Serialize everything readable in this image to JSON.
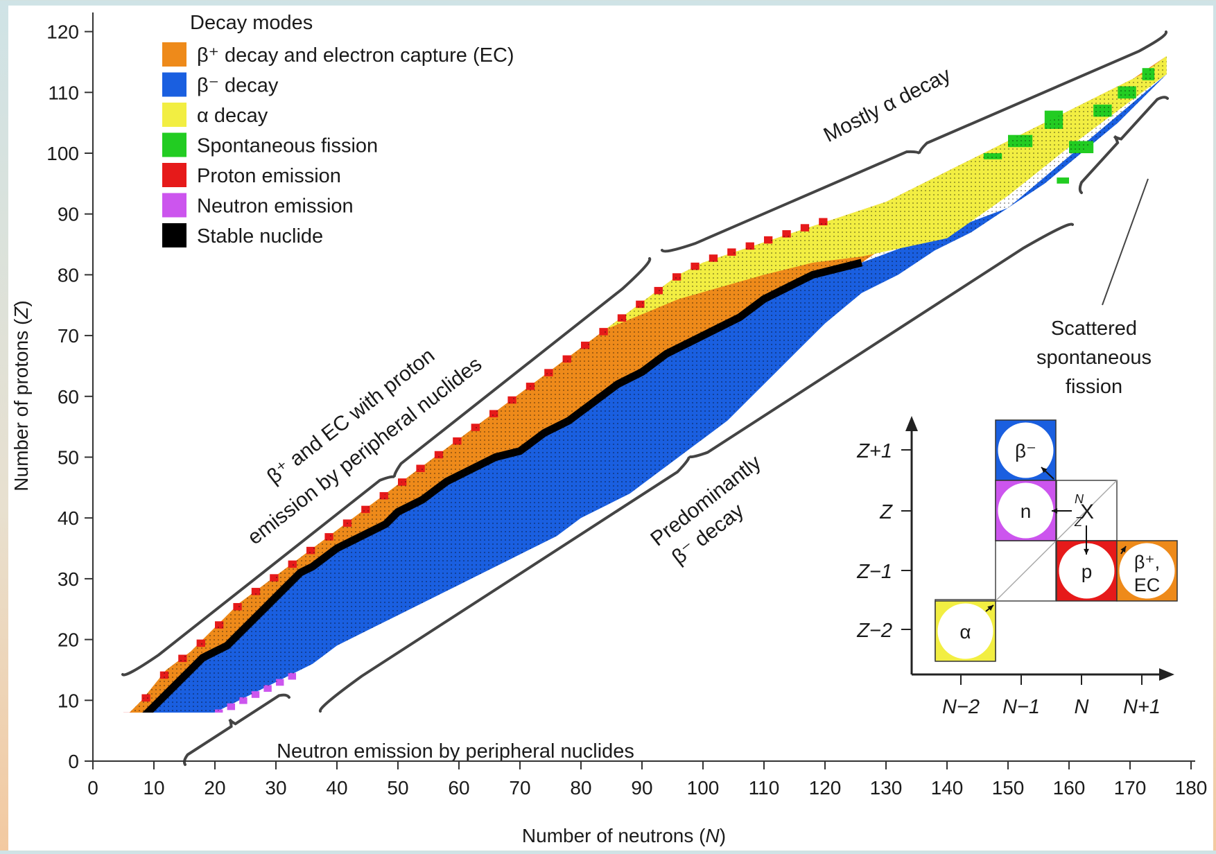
{
  "chart_data": {
    "type": "heatmap",
    "title": "",
    "xlabel_prefix": "Number of  neutrons (",
    "xlabel_var": "N",
    "xlabel_suffix": ")",
    "ylabel_prefix": "Number of  protons (",
    "ylabel_var": "Z",
    "ylabel_suffix": ")",
    "xlim": [
      0,
      180
    ],
    "ylim": [
      0,
      120
    ],
    "xticks": [
      0,
      10,
      20,
      30,
      40,
      50,
      60,
      70,
      80,
      90,
      100,
      110,
      120,
      130,
      140,
      150,
      160,
      170,
      180
    ],
    "yticks": [
      0,
      10,
      20,
      30,
      40,
      50,
      60,
      70,
      80,
      90,
      100,
      110,
      120
    ],
    "grid": false,
    "legend_position": "top-left",
    "legend_title": "Decay modes",
    "legend": [
      {
        "mode": "beta_plus_ec",
        "label": "β⁺ decay and electron capture (EC)",
        "color": "#ee8a1a"
      },
      {
        "mode": "beta_minus",
        "label": "β⁻ decay",
        "color": "#1a5fe0"
      },
      {
        "mode": "alpha",
        "label": "α decay",
        "color": "#f2ee42"
      },
      {
        "mode": "spontaneous_fission",
        "label": "Spontaneous fission",
        "color": "#22cc22"
      },
      {
        "mode": "proton_emission",
        "label": "Proton emission",
        "color": "#e61a1a"
      },
      {
        "mode": "neutron_emission",
        "label": "Neutron emission",
        "color": "#cc55ee"
      },
      {
        "mode": "stable",
        "label": "Stable nuclide",
        "color": "#000000"
      }
    ],
    "stability_line": [
      [
        0,
        1
      ],
      [
        1,
        1
      ],
      [
        2,
        2
      ],
      [
        4,
        3
      ],
      [
        6,
        5
      ],
      [
        8,
        7
      ],
      [
        10,
        9
      ],
      [
        12,
        11
      ],
      [
        14,
        13
      ],
      [
        16,
        15
      ],
      [
        18,
        17
      ],
      [
        20,
        18
      ],
      [
        22,
        19
      ],
      [
        24,
        21
      ],
      [
        26,
        23
      ],
      [
        28,
        25
      ],
      [
        30,
        27
      ],
      [
        32,
        29
      ],
      [
        34,
        31
      ],
      [
        36,
        32
      ],
      [
        40,
        35
      ],
      [
        44,
        37
      ],
      [
        48,
        39
      ],
      [
        50,
        41
      ],
      [
        54,
        43
      ],
      [
        58,
        46
      ],
      [
        62,
        48
      ],
      [
        66,
        50
      ],
      [
        70,
        51
      ],
      [
        74,
        54
      ],
      [
        78,
        56
      ],
      [
        82,
        59
      ],
      [
        86,
        62
      ],
      [
        90,
        64
      ],
      [
        94,
        67
      ],
      [
        98,
        69
      ],
      [
        102,
        71
      ],
      [
        106,
        73
      ],
      [
        110,
        76
      ],
      [
        114,
        78
      ],
      [
        118,
        80
      ],
      [
        126,
        82
      ]
    ],
    "drip_upper": [
      [
        0,
        2
      ],
      [
        4,
        6
      ],
      [
        8,
        10
      ],
      [
        12,
        15
      ],
      [
        16,
        18
      ],
      [
        20,
        22
      ],
      [
        24,
        26
      ],
      [
        28,
        29
      ],
      [
        32,
        32
      ],
      [
        36,
        35
      ],
      [
        40,
        38
      ],
      [
        44,
        41
      ],
      [
        48,
        44
      ],
      [
        52,
        47
      ],
      [
        56,
        50
      ],
      [
        60,
        53
      ],
      [
        64,
        56
      ],
      [
        68,
        59
      ],
      [
        72,
        62
      ],
      [
        76,
        65
      ],
      [
        80,
        68
      ],
      [
        84,
        71
      ],
      [
        88,
        74
      ],
      [
        92,
        77
      ],
      [
        96,
        80
      ],
      [
        100,
        82
      ],
      [
        106,
        84
      ],
      [
        112,
        86
      ],
      [
        118,
        88
      ],
      [
        124,
        90
      ],
      [
        130,
        92
      ],
      [
        136,
        95
      ],
      [
        142,
        98
      ],
      [
        148,
        101
      ],
      [
        154,
        104
      ],
      [
        160,
        107
      ],
      [
        166,
        110
      ],
      [
        172,
        113
      ],
      [
        176,
        116
      ]
    ],
    "drip_lower": [
      [
        1,
        0
      ],
      [
        4,
        0
      ],
      [
        8,
        2
      ],
      [
        12,
        4
      ],
      [
        16,
        6
      ],
      [
        20,
        8
      ],
      [
        24,
        10
      ],
      [
        28,
        12
      ],
      [
        32,
        14
      ],
      [
        36,
        16
      ],
      [
        40,
        19
      ],
      [
        44,
        21
      ],
      [
        48,
        23
      ],
      [
        52,
        25
      ],
      [
        56,
        27
      ],
      [
        60,
        29
      ],
      [
        64,
        31
      ],
      [
        68,
        33
      ],
      [
        72,
        35
      ],
      [
        76,
        37
      ],
      [
        80,
        40
      ],
      [
        84,
        42
      ],
      [
        88,
        44
      ],
      [
        92,
        47
      ],
      [
        96,
        50
      ],
      [
        100,
        53
      ],
      [
        104,
        56
      ],
      [
        108,
        60
      ],
      [
        112,
        64
      ],
      [
        116,
        68
      ],
      [
        120,
        72
      ],
      [
        126,
        77
      ],
      [
        132,
        80
      ],
      [
        138,
        84
      ],
      [
        144,
        87
      ],
      [
        150,
        91
      ],
      [
        156,
        95
      ],
      [
        162,
        100
      ],
      [
        168,
        105
      ],
      [
        172,
        109
      ],
      [
        176,
        113
      ]
    ],
    "alpha_region_start_Z": 73,
    "fission_region_start_N": 140,
    "annotations": {
      "beta_plus_line1": "β⁺ and EC with proton",
      "beta_plus_line2": "emission by peripheral nuclides",
      "mostly_alpha": "Mostly α decay",
      "predominantly_line1": "Predominantly",
      "predominantly_line2": "β⁻ decay",
      "neutron_emission": "Neutron emission by peripheral nuclides",
      "scattered_line1": "Scattered",
      "scattered_line2": "spontaneous",
      "scattered_line3": "fission"
    },
    "inset": {
      "y_labels": [
        "Z+1",
        "Z",
        "Z−1",
        "Z−2"
      ],
      "x_labels": [
        "N−2",
        "N−1",
        "N",
        "N+1"
      ],
      "cells": [
        {
          "mode": "beta_minus",
          "label": "β⁻"
        },
        {
          "mode": "neutron_emission",
          "label": "n"
        },
        {
          "mode": "proton_emission",
          "label": "p"
        },
        {
          "mode": "beta_plus_ec",
          "label_line1": "β⁺,",
          "label_line2": "EC"
        },
        {
          "mode": "alpha",
          "label": "α"
        }
      ],
      "center_symbol": "X",
      "center_sup": "N",
      "center_sub": "Z"
    }
  }
}
